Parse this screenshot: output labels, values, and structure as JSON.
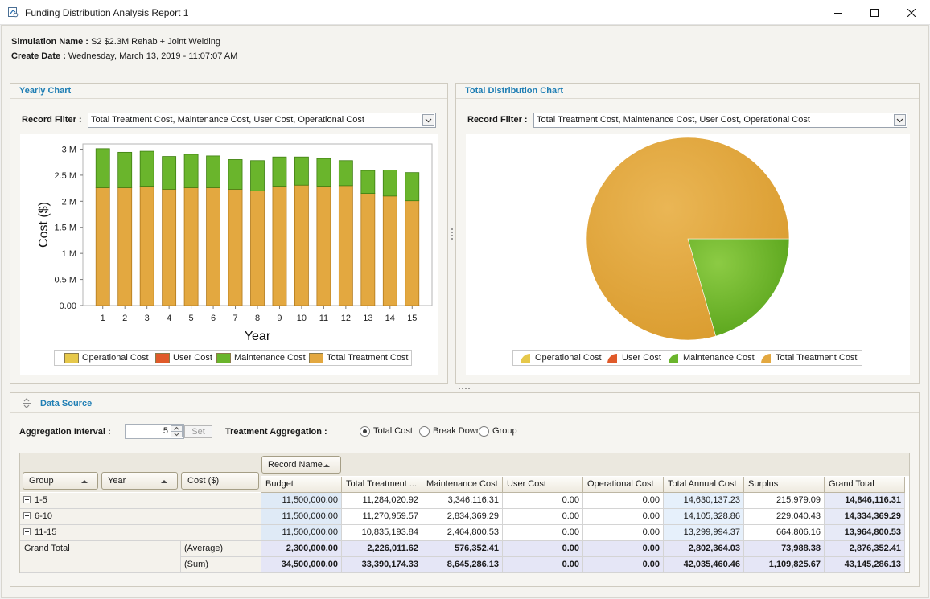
{
  "window": {
    "title": "Funding Distribution Analysis Report 1"
  },
  "info": {
    "simulation_label": "Simulation Name :",
    "simulation_value": "S2 $2.3M Rehab + Joint Welding",
    "create_label": "Create Date :",
    "create_value": "Wednesday, March 13, 2019 - 11:07:07 AM"
  },
  "yearly_panel": {
    "title": "Yearly Chart",
    "filter_label": "Record Filter :",
    "filter_value": "Total Treatment Cost, Maintenance Cost, User Cost, Operational Cost"
  },
  "distribution_panel": {
    "title": "Total Distribution Chart",
    "filter_label": "Record Filter :",
    "filter_value": "Total Treatment Cost, Maintenance Cost, User Cost, Operational Cost"
  },
  "colors": {
    "operational": "#e6c84a",
    "user": "#e05a2a",
    "maintenance": "#6ab52c",
    "treatment": "#e3a840"
  },
  "chart_data": [
    {
      "type": "bar",
      "stacked": true,
      "xlabel": "Year",
      "ylabel": "Cost ($)",
      "ylim": [
        0,
        3100000
      ],
      "yticks": [
        "0.00",
        "0.5 M",
        "1 M",
        "1.5 M",
        "2 M",
        "2.5 M",
        "3 M"
      ],
      "grid": false,
      "legend_position": "bottom",
      "categories": [
        "1",
        "2",
        "3",
        "4",
        "5",
        "6",
        "7",
        "8",
        "9",
        "10",
        "11",
        "12",
        "13",
        "14",
        "15"
      ],
      "series": [
        {
          "name": "Operational Cost",
          "color": "#e6c84a",
          "values": [
            0,
            0,
            0,
            0,
            0,
            0,
            0,
            0,
            0,
            0,
            0,
            0,
            0,
            0,
            0
          ]
        },
        {
          "name": "User Cost",
          "color": "#e05a2a",
          "values": [
            0,
            0,
            0,
            0,
            0,
            0,
            0,
            0,
            0,
            0,
            0,
            0,
            0,
            0,
            0
          ]
        },
        {
          "name": "Total Treatment Cost",
          "color": "#e3a840",
          "values": [
            2260000,
            2260000,
            2290000,
            2230000,
            2260000,
            2260000,
            2230000,
            2200000,
            2290000,
            2310000,
            2290000,
            2300000,
            2150000,
            2100000,
            2010000
          ]
        },
        {
          "name": "Maintenance Cost",
          "color": "#6ab52c",
          "values": [
            750000,
            680000,
            670000,
            630000,
            640000,
            610000,
            570000,
            580000,
            560000,
            540000,
            530000,
            480000,
            440000,
            500000,
            540000
          ]
        }
      ]
    },
    {
      "type": "pie",
      "legend_position": "bottom",
      "slices": [
        {
          "name": "Operational Cost",
          "color": "#e6c84a",
          "value": 0.0
        },
        {
          "name": "User Cost",
          "color": "#e05a2a",
          "value": 0.0
        },
        {
          "name": "Maintenance Cost",
          "color": "#6ab52c",
          "value": 8645286.13
        },
        {
          "name": "Total Treatment Cost",
          "color": "#e3a840",
          "value": 33390174.33
        }
      ]
    }
  ],
  "legend_items": [
    "Operational Cost",
    "User Cost",
    "Maintenance Cost",
    "Total Treatment Cost"
  ],
  "data_source": {
    "title": "Data Source",
    "aggregation_label": "Aggregation Interval :",
    "aggregation_value": "5",
    "set_label": "Set",
    "treatment_label": "Treatment Aggregation :",
    "radios": [
      {
        "label": "Total Cost",
        "selected": true
      },
      {
        "label": "Break Down",
        "selected": false
      },
      {
        "label": "Group",
        "selected": false
      }
    ]
  },
  "pivot": {
    "column_field": "Record Name",
    "row_fields": [
      "Group",
      "Year"
    ],
    "data_field": "Cost ($)",
    "columns": [
      "Budget",
      "Total Treatment ...",
      "Maintenance Cost",
      "User Cost",
      "Operational Cost",
      "Total Annual Cost",
      "Surplus",
      "Grand Total"
    ],
    "rows": [
      {
        "label": "1-5",
        "values": [
          "11,500,000.00",
          "11,284,020.92",
          "3,346,116.31",
          "0.00",
          "0.00",
          "14,630,137.23",
          "215,979.09",
          "14,846,116.31"
        ]
      },
      {
        "label": "6-10",
        "values": [
          "11,500,000.00",
          "11,270,959.57",
          "2,834,369.29",
          "0.00",
          "0.00",
          "14,105,328.86",
          "229,040.43",
          "14,334,369.29"
        ]
      },
      {
        "label": "11-15",
        "values": [
          "11,500,000.00",
          "10,835,193.84",
          "2,464,800.53",
          "0.00",
          "0.00",
          "13,299,994.37",
          "664,806.16",
          "13,964,800.53"
        ]
      }
    ],
    "grand_total_label": "Grand Total",
    "totals": [
      {
        "label": "(Average)",
        "values": [
          "2,300,000.00",
          "2,226,011.62",
          "576,352.41",
          "0.00",
          "0.00",
          "2,802,364.03",
          "73,988.38",
          "2,876,352.41"
        ]
      },
      {
        "label": "(Sum)",
        "values": [
          "34,500,000.00",
          "33,390,174.33",
          "8,645,286.13",
          "0.00",
          "0.00",
          "42,035,460.46",
          "1,109,825.67",
          "43,145,286.13"
        ]
      }
    ]
  }
}
